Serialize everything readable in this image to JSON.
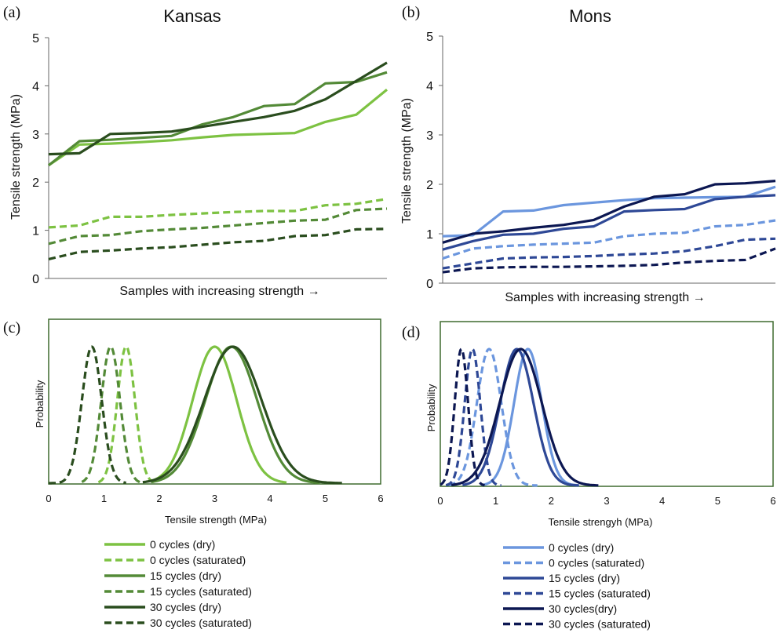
{
  "panels": {
    "a": {
      "letter": "(a)",
      "title": "Kansas",
      "ylabel": "Tensile strength (MPa)",
      "xlabel": "Samples with increasing strength →"
    },
    "b": {
      "letter": "(b)",
      "title": "Mons",
      "ylabel": "Tensile strength (MPa)",
      "xlabel": "Samples with increasing strength →"
    },
    "c": {
      "letter": "(c)",
      "ylabel": "Probability",
      "xlabel": "Tensile strength  (MPa)"
    },
    "d": {
      "letter": "(d)",
      "ylabel": "Probability",
      "xlabel": "Tensile strengyh  (MPa)"
    }
  },
  "legends": {
    "left": [
      "0 cycles (dry)",
      "0 cycles (saturated)",
      "15 cycles (dry)",
      "15 cycles (saturated)",
      "30 cycles (dry)",
      "30 cycles (saturated)"
    ],
    "right": [
      "0 cycles (dry)",
      "0 cycles (saturated)",
      "15 cycles (dry)",
      "15 cycles (saturated)",
      "30 cycles(dry)",
      "30 cycles (saturated)"
    ]
  },
  "colors": {
    "kansas": [
      "#7dc242",
      "#538a37",
      "#2a4d1e"
    ],
    "mons": [
      "#6b96de",
      "#2e4896",
      "#0c1752"
    ]
  },
  "chart_data": [
    {
      "type": "line",
      "title": "Kansas",
      "ylabel": "Tensile strength (MPa)",
      "xlabel": "Samples with increasing strength →",
      "ylim": [
        0,
        5
      ],
      "yticks": [
        0,
        1,
        2,
        3,
        4,
        5
      ],
      "x": [
        1,
        2,
        3,
        4,
        5,
        6,
        7,
        8,
        9,
        10,
        11,
        12
      ],
      "series": [
        {
          "name": "0 cycles (dry)",
          "style": "solid",
          "color": "#7dc242",
          "values": [
            2.35,
            2.78,
            2.8,
            2.83,
            2.87,
            2.93,
            2.98,
            3.0,
            3.02,
            3.25,
            3.4,
            3.92
          ]
        },
        {
          "name": "15 cycles (dry)",
          "style": "solid",
          "color": "#538a37",
          "values": [
            2.35,
            2.85,
            2.88,
            2.92,
            2.96,
            3.2,
            3.35,
            3.58,
            3.62,
            4.05,
            4.08,
            4.28
          ]
        },
        {
          "name": "30 cycles (dry)",
          "style": "solid",
          "color": "#2a4d1e",
          "values": [
            2.58,
            2.6,
            3.0,
            3.02,
            3.05,
            3.15,
            3.25,
            3.35,
            3.48,
            3.72,
            4.1,
            4.48
          ]
        },
        {
          "name": "0 cycles (saturated)",
          "style": "dashed",
          "color": "#7dc242",
          "values": [
            1.06,
            1.1,
            1.28,
            1.28,
            1.32,
            1.35,
            1.38,
            1.4,
            1.4,
            1.52,
            1.55,
            1.65
          ]
        },
        {
          "name": "15 cycles (saturated)",
          "style": "dashed",
          "color": "#538a37",
          "values": [
            0.72,
            0.88,
            0.9,
            0.98,
            1.02,
            1.05,
            1.1,
            1.15,
            1.2,
            1.22,
            1.42,
            1.45
          ]
        },
        {
          "name": "30 cycles (saturated)",
          "style": "dashed",
          "color": "#2a4d1e",
          "values": [
            0.4,
            0.55,
            0.58,
            0.62,
            0.65,
            0.7,
            0.75,
            0.78,
            0.88,
            0.9,
            1.02,
            1.03
          ]
        }
      ]
    },
    {
      "type": "line",
      "title": "Mons",
      "ylabel": "Tensile strength (MPa)",
      "xlabel": "Samples with increasing strength →",
      "ylim": [
        0,
        5
      ],
      "yticks": [
        0,
        1,
        2,
        3,
        4,
        5
      ],
      "x": [
        1,
        2,
        3,
        4,
        5,
        6,
        7,
        8,
        9,
        10,
        11,
        12
      ],
      "series": [
        {
          "name": "0 cycles (dry)",
          "style": "solid",
          "color": "#6b96de",
          "values": [
            0.95,
            0.97,
            1.45,
            1.47,
            1.58,
            1.63,
            1.68,
            1.72,
            1.73,
            1.74,
            1.75,
            1.95
          ]
        },
        {
          "name": "15 cycles (dry)",
          "style": "solid",
          "color": "#2e4896",
          "values": [
            0.68,
            0.85,
            0.98,
            1.0,
            1.1,
            1.15,
            1.45,
            1.48,
            1.5,
            1.7,
            1.75,
            1.78
          ]
        },
        {
          "name": "30 cycles (dry)",
          "style": "solid",
          "color": "#0c1752",
          "values": [
            0.82,
            1.0,
            1.05,
            1.12,
            1.18,
            1.28,
            1.55,
            1.75,
            1.8,
            2.0,
            2.02,
            2.07
          ]
        },
        {
          "name": "0 cycles (saturated)",
          "style": "dashed",
          "color": "#6b96de",
          "values": [
            0.5,
            0.7,
            0.75,
            0.78,
            0.8,
            0.82,
            0.95,
            1.0,
            1.02,
            1.15,
            1.18,
            1.27
          ]
        },
        {
          "name": "15 cycles (saturated)",
          "style": "dashed",
          "color": "#2e4896",
          "values": [
            0.3,
            0.4,
            0.5,
            0.52,
            0.53,
            0.55,
            0.58,
            0.6,
            0.65,
            0.75,
            0.88,
            0.9
          ]
        },
        {
          "name": "30 cycles (saturated)",
          "style": "dashed",
          "color": "#0c1752",
          "values": [
            0.22,
            0.3,
            0.32,
            0.33,
            0.33,
            0.34,
            0.35,
            0.37,
            0.42,
            0.45,
            0.47,
            0.7
          ]
        }
      ]
    },
    {
      "type": "line",
      "xlabel": "Tensile strength  (MPa)",
      "ylabel": "Probability",
      "xlim": [
        0,
        6
      ],
      "xticks": [
        0,
        1,
        2,
        3,
        4,
        5,
        6
      ],
      "series": [
        {
          "name": "0 cycles (dry)",
          "style": "solid",
          "color": "#7dc242",
          "mean": 3.0,
          "sd": 0.4,
          "range": [
            1.9,
            4.3
          ]
        },
        {
          "name": "0 cycles (saturated)",
          "style": "dashed",
          "color": "#7dc242",
          "mean": 1.4,
          "sd": 0.16,
          "range": [
            0.9,
            1.9
          ]
        },
        {
          "name": "15 cycles (dry)",
          "style": "solid",
          "color": "#538a37",
          "mean": 3.3,
          "sd": 0.47,
          "range": [
            1.85,
            4.9
          ]
        },
        {
          "name": "15 cycles (saturated)",
          "style": "dashed",
          "color": "#538a37",
          "mean": 1.12,
          "sd": 0.17,
          "range": [
            0.6,
            1.65
          ]
        },
        {
          "name": "30 cycles (dry)",
          "style": "solid",
          "color": "#2a4d1e",
          "mean": 3.33,
          "sd": 0.52,
          "range": [
            1.7,
            5.3
          ]
        },
        {
          "name": "30 cycles (saturated)",
          "style": "dashed",
          "color": "#2a4d1e",
          "mean": 0.78,
          "sd": 0.18,
          "range": [
            0.0,
            1.4
          ]
        }
      ]
    },
    {
      "type": "line",
      "xlabel": "Tensile strengyh  (MPa)",
      "ylabel": "Probability",
      "xlim": [
        0,
        6
      ],
      "xticks": [
        0,
        1,
        2,
        3,
        4,
        5,
        6
      ],
      "series": [
        {
          "name": "0 cycles (dry)",
          "style": "solid",
          "color": "#6b96de",
          "mean": 1.58,
          "sd": 0.25,
          "range": [
            0.75,
            2.5
          ]
        },
        {
          "name": "0 cycles (saturated)",
          "style": "dashed",
          "color": "#6b96de",
          "mean": 0.88,
          "sd": 0.22,
          "range": [
            0.15,
            1.75
          ]
        },
        {
          "name": "15 cycles (dry)",
          "style": "solid",
          "color": "#2e4896",
          "mean": 1.38,
          "sd": 0.3,
          "range": [
            0.4,
            2.5
          ]
        },
        {
          "name": "15 cycles (saturated)",
          "style": "dashed",
          "color": "#2e4896",
          "mean": 0.58,
          "sd": 0.14,
          "range": [
            0.1,
            1.1
          ]
        },
        {
          "name": "30 cycles (dry)",
          "style": "solid",
          "color": "#0c1752",
          "mean": 1.45,
          "sd": 0.38,
          "range": [
            0.2,
            2.85
          ]
        },
        {
          "name": "30 cycles (saturated)",
          "style": "dashed",
          "color": "#0c1752",
          "mean": 0.38,
          "sd": 0.12,
          "range": [
            0.0,
            0.8
          ]
        }
      ]
    }
  ]
}
